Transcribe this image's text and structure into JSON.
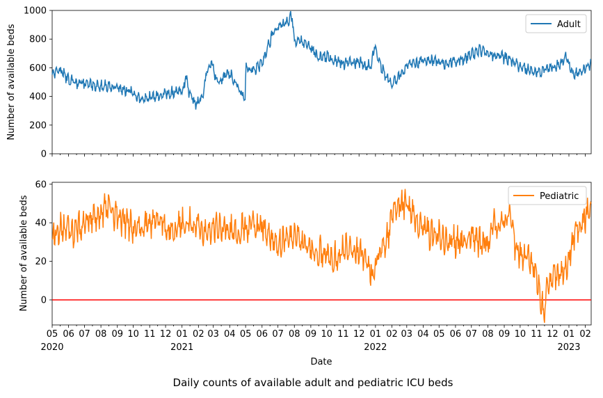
{
  "figure": {
    "suptitle": "Daily counts of available adult and pediatric ICU beds",
    "xlabel": "Date"
  },
  "chart_data": [
    {
      "type": "line",
      "ylabel": "Number of available beds",
      "ylim": [
        0,
        1000
      ],
      "yticks": [
        0,
        200,
        400,
        600,
        800,
        1000
      ],
      "legend_position": "top-right",
      "x_range": [
        "2020-05-01",
        "2023-02-12"
      ],
      "series": [
        {
          "name": "Adult",
          "color": "#1f77b4",
          "points": [
            [
              "2020-05-01",
              560
            ],
            [
              "2020-05-15",
              590
            ],
            [
              "2020-06-01",
              520
            ],
            [
              "2020-06-15",
              500
            ],
            [
              "2020-07-01",
              490
            ],
            [
              "2020-07-15",
              480
            ],
            [
              "2020-08-01",
              470
            ],
            [
              "2020-08-15",
              470
            ],
            [
              "2020-09-01",
              460
            ],
            [
              "2020-09-15",
              450
            ],
            [
              "2020-10-01",
              420
            ],
            [
              "2020-10-15",
              380
            ],
            [
              "2020-11-01",
              390
            ],
            [
              "2020-11-15",
              400
            ],
            [
              "2020-12-01",
              420
            ],
            [
              "2020-12-15",
              430
            ],
            [
              "2021-01-01",
              440
            ],
            [
              "2021-01-08",
              530
            ],
            [
              "2021-01-15",
              420
            ],
            [
              "2021-01-25",
              350
            ],
            [
              "2021-02-01",
              360
            ],
            [
              "2021-02-10",
              400
            ],
            [
              "2021-02-18",
              600
            ],
            [
              "2021-02-25",
              650
            ],
            [
              "2021-03-05",
              530
            ],
            [
              "2021-03-15",
              500
            ],
            [
              "2021-03-25",
              560
            ],
            [
              "2021-04-05",
              540
            ],
            [
              "2021-04-15",
              480
            ],
            [
              "2021-04-25",
              400
            ],
            [
              "2021-04-30",
              380
            ],
            [
              "2021-05-02",
              590
            ],
            [
              "2021-05-20",
              590
            ],
            [
              "2021-06-01",
              630
            ],
            [
              "2021-06-10",
              720
            ],
            [
              "2021-06-20",
              830
            ],
            [
              "2021-07-01",
              880
            ],
            [
              "2021-07-10",
              900
            ],
            [
              "2021-07-20",
              930
            ],
            [
              "2021-07-28",
              960
            ],
            [
              "2021-08-01",
              760
            ],
            [
              "2021-08-10",
              800
            ],
            [
              "2021-08-20",
              770
            ],
            [
              "2021-09-01",
              740
            ],
            [
              "2021-09-15",
              670
            ],
            [
              "2021-10-01",
              680
            ],
            [
              "2021-10-15",
              650
            ],
            [
              "2021-11-01",
              630
            ],
            [
              "2021-11-15",
              640
            ],
            [
              "2021-12-01",
              640
            ],
            [
              "2021-12-15",
              610
            ],
            [
              "2021-12-25",
              620
            ],
            [
              "2021-12-30",
              780
            ],
            [
              "2022-01-05",
              680
            ],
            [
              "2022-01-15",
              580
            ],
            [
              "2022-01-25",
              520
            ],
            [
              "2022-02-01",
              480
            ],
            [
              "2022-02-10",
              520
            ],
            [
              "2022-02-20",
              560
            ],
            [
              "2022-03-01",
              610
            ],
            [
              "2022-03-15",
              630
            ],
            [
              "2022-04-01",
              650
            ],
            [
              "2022-04-15",
              650
            ],
            [
              "2022-05-01",
              640
            ],
            [
              "2022-05-15",
              630
            ],
            [
              "2022-06-01",
              640
            ],
            [
              "2022-06-15",
              660
            ],
            [
              "2022-07-01",
              690
            ],
            [
              "2022-07-15",
              720
            ],
            [
              "2022-08-01",
              700
            ],
            [
              "2022-08-15",
              690
            ],
            [
              "2022-09-01",
              670
            ],
            [
              "2022-09-15",
              650
            ],
            [
              "2022-10-01",
              610
            ],
            [
              "2022-10-15",
              590
            ],
            [
              "2022-11-01",
              570
            ],
            [
              "2022-11-15",
              580
            ],
            [
              "2022-12-01",
              600
            ],
            [
              "2022-12-15",
              620
            ],
            [
              "2022-12-25",
              690
            ],
            [
              "2023-01-01",
              620
            ],
            [
              "2023-01-10",
              540
            ],
            [
              "2023-01-20",
              570
            ],
            [
              "2023-02-01",
              600
            ],
            [
              "2023-02-12",
              620
            ]
          ]
        }
      ]
    },
    {
      "type": "line",
      "ylabel": "Number of available beds",
      "ylim": [
        -13,
        61
      ],
      "yticks": [
        0,
        20,
        40,
        60
      ],
      "legend_position": "top-right",
      "reference_line": {
        "y": 0,
        "color": "#ff0000"
      },
      "x_range": [
        "2020-05-01",
        "2023-02-12"
      ],
      "series": [
        {
          "name": "Pediatric",
          "color": "#ff7f0e",
          "points": [
            [
              "2020-05-01",
              33
            ],
            [
              "2020-05-15",
              38
            ],
            [
              "2020-06-01",
              36
            ],
            [
              "2020-06-15",
              35
            ],
            [
              "2020-07-01",
              41
            ],
            [
              "2020-07-15",
              42
            ],
            [
              "2020-08-01",
              43
            ],
            [
              "2020-08-10",
              48
            ],
            [
              "2020-08-20",
              45
            ],
            [
              "2020-09-01",
              43
            ],
            [
              "2020-09-15",
              41
            ],
            [
              "2020-10-01",
              38
            ],
            [
              "2020-10-15",
              37
            ],
            [
              "2020-11-01",
              40
            ],
            [
              "2020-11-15",
              42
            ],
            [
              "2020-12-01",
              38
            ],
            [
              "2020-12-15",
              36
            ],
            [
              "2021-01-01",
              40
            ],
            [
              "2021-01-15",
              41
            ],
            [
              "2021-02-01",
              38
            ],
            [
              "2021-02-15",
              36
            ],
            [
              "2021-03-01",
              38
            ],
            [
              "2021-03-15",
              37
            ],
            [
              "2021-04-01",
              37
            ],
            [
              "2021-04-15",
              36
            ],
            [
              "2021-05-01",
              38
            ],
            [
              "2021-05-15",
              39
            ],
            [
              "2021-06-01",
              37
            ],
            [
              "2021-06-15",
              34
            ],
            [
              "2021-07-01",
              30
            ],
            [
              "2021-07-15",
              31
            ],
            [
              "2021-08-01",
              33
            ],
            [
              "2021-08-15",
              30
            ],
            [
              "2021-09-01",
              26
            ],
            [
              "2021-09-15",
              25
            ],
            [
              "2021-10-01",
              24
            ],
            [
              "2021-10-15",
              22
            ],
            [
              "2021-11-01",
              26
            ],
            [
              "2021-11-15",
              27
            ],
            [
              "2021-12-01",
              25
            ],
            [
              "2021-12-10",
              22
            ],
            [
              "2021-12-20",
              16
            ],
            [
              "2021-12-28",
              12
            ],
            [
              "2022-01-05",
              22
            ],
            [
              "2022-01-15",
              28
            ],
            [
              "2022-01-25",
              32
            ],
            [
              "2022-02-01",
              46
            ],
            [
              "2022-02-10",
              50
            ],
            [
              "2022-02-20",
              48
            ],
            [
              "2022-03-01",
              50
            ],
            [
              "2022-03-15",
              43
            ],
            [
              "2022-04-01",
              38
            ],
            [
              "2022-04-15",
              34
            ],
            [
              "2022-05-01",
              33
            ],
            [
              "2022-05-15",
              31
            ],
            [
              "2022-06-01",
              30
            ],
            [
              "2022-06-15",
              29
            ],
            [
              "2022-07-01",
              32
            ],
            [
              "2022-07-15",
              30
            ],
            [
              "2022-08-01",
              29
            ],
            [
              "2022-08-10",
              40
            ],
            [
              "2022-08-20",
              38
            ],
            [
              "2022-09-01",
              42
            ],
            [
              "2022-09-10",
              45
            ],
            [
              "2022-09-20",
              30
            ],
            [
              "2022-10-01",
              22
            ],
            [
              "2022-10-15",
              24
            ],
            [
              "2022-11-01",
              14
            ],
            [
              "2022-11-08",
              0
            ],
            [
              "2022-11-15",
              -5
            ],
            [
              "2022-11-22",
              6
            ],
            [
              "2022-12-01",
              12
            ],
            [
              "2022-12-15",
              13
            ],
            [
              "2023-01-01",
              20
            ],
            [
              "2023-01-15",
              38
            ],
            [
              "2023-01-25",
              40
            ],
            [
              "2023-02-05",
              45
            ],
            [
              "2023-02-12",
              48
            ]
          ]
        }
      ]
    }
  ],
  "x_ticks": {
    "months": [
      "05",
      "06",
      "07",
      "08",
      "09",
      "10",
      "11",
      "12",
      "01",
      "02",
      "03",
      "04",
      "05",
      "06",
      "07",
      "08",
      "09",
      "10",
      "11",
      "12",
      "01",
      "02",
      "03",
      "04",
      "05",
      "06",
      "07",
      "08",
      "09",
      "10",
      "11",
      "12",
      "01",
      "02"
    ],
    "years": [
      "2020",
      "2021",
      "2022",
      "2023"
    ]
  }
}
